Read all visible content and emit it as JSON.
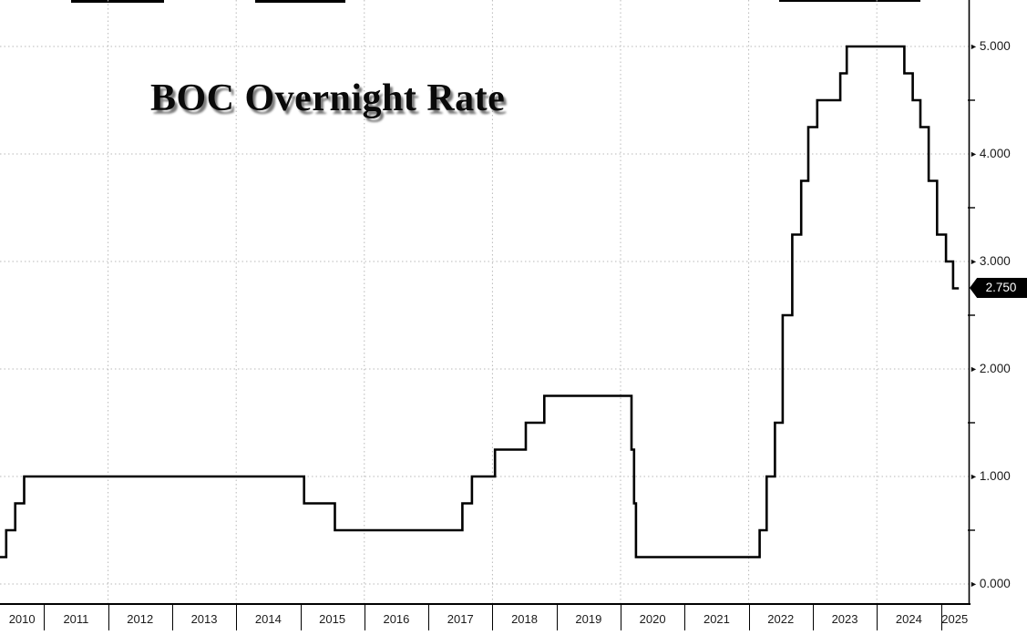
{
  "chart_data": {
    "type": "line",
    "subtype": "step-after",
    "title": "BOC Overnight Rate",
    "legend": "none",
    "grid": "dotted",
    "series": [
      {
        "name": "BOC Overnight Rate",
        "unit": "percent",
        "points": [
          {
            "t": 2010.31,
            "rate": 0.25
          },
          {
            "t": 2010.41,
            "rate": 0.5
          },
          {
            "t": 2010.55,
            "rate": 0.75
          },
          {
            "t": 2010.69,
            "rate": 1.0
          },
          {
            "t": 2015.06,
            "rate": 0.75
          },
          {
            "t": 2015.54,
            "rate": 0.5
          },
          {
            "t": 2017.53,
            "rate": 0.75
          },
          {
            "t": 2017.68,
            "rate": 1.0
          },
          {
            "t": 2018.04,
            "rate": 1.25
          },
          {
            "t": 2018.52,
            "rate": 1.5
          },
          {
            "t": 2018.81,
            "rate": 1.75
          },
          {
            "t": 2020.17,
            "rate": 1.25
          },
          {
            "t": 2020.21,
            "rate": 0.75
          },
          {
            "t": 2020.24,
            "rate": 0.25
          },
          {
            "t": 2022.17,
            "rate": 0.5
          },
          {
            "t": 2022.28,
            "rate": 1.0
          },
          {
            "t": 2022.41,
            "rate": 1.5
          },
          {
            "t": 2022.53,
            "rate": 2.5
          },
          {
            "t": 2022.68,
            "rate": 3.25
          },
          {
            "t": 2022.82,
            "rate": 3.75
          },
          {
            "t": 2022.93,
            "rate": 4.25
          },
          {
            "t": 2023.07,
            "rate": 4.5
          },
          {
            "t": 2023.43,
            "rate": 4.75
          },
          {
            "t": 2023.53,
            "rate": 5.0
          },
          {
            "t": 2024.43,
            "rate": 4.75
          },
          {
            "t": 2024.56,
            "rate": 4.5
          },
          {
            "t": 2024.68,
            "rate": 4.25
          },
          {
            "t": 2024.81,
            "rate": 3.75
          },
          {
            "t": 2024.94,
            "rate": 3.25
          },
          {
            "t": 2025.08,
            "rate": 3.0
          },
          {
            "t": 2025.19,
            "rate": 2.75
          }
        ],
        "end_t": 2025.28
      }
    ],
    "last_value": 2.75,
    "last_value_label": "2.750",
    "x_axis": {
      "tick_labels": [
        "2010",
        "2011",
        "2012",
        "2013",
        "2014",
        "2015",
        "2016",
        "2017",
        "2018",
        "2019",
        "2020",
        "2021",
        "2022",
        "2023",
        "2024",
        "2025"
      ],
      "tick_years": [
        2010,
        2011,
        2012,
        2013,
        2014,
        2015,
        2016,
        2017,
        2018,
        2019,
        2020,
        2021,
        2022,
        2023,
        2024,
        2025
      ],
      "gridline_years": [
        2012,
        2014,
        2016,
        2018,
        2020,
        2022,
        2024
      ],
      "range_t": [
        2010.31,
        2025.43
      ]
    },
    "y_axis": {
      "side": "right",
      "tick_labels": [
        "0.000",
        "1.000",
        "2.000",
        "3.000",
        "4.000",
        "5.000"
      ],
      "tick_values": [
        0,
        1,
        2,
        3,
        4,
        5
      ],
      "minor_tick_values": [
        0.5,
        1.5,
        2.5,
        3.5,
        4.5
      ],
      "range": [
        0,
        5.4
      ]
    },
    "colors": {
      "background": "#ffffff",
      "line": "#000000",
      "grid": "#b8b8b8",
      "axis": "#000000",
      "tick_text": "#1a1a1a",
      "badge_bg": "#000000",
      "badge_text": "#ffffff"
    }
  }
}
